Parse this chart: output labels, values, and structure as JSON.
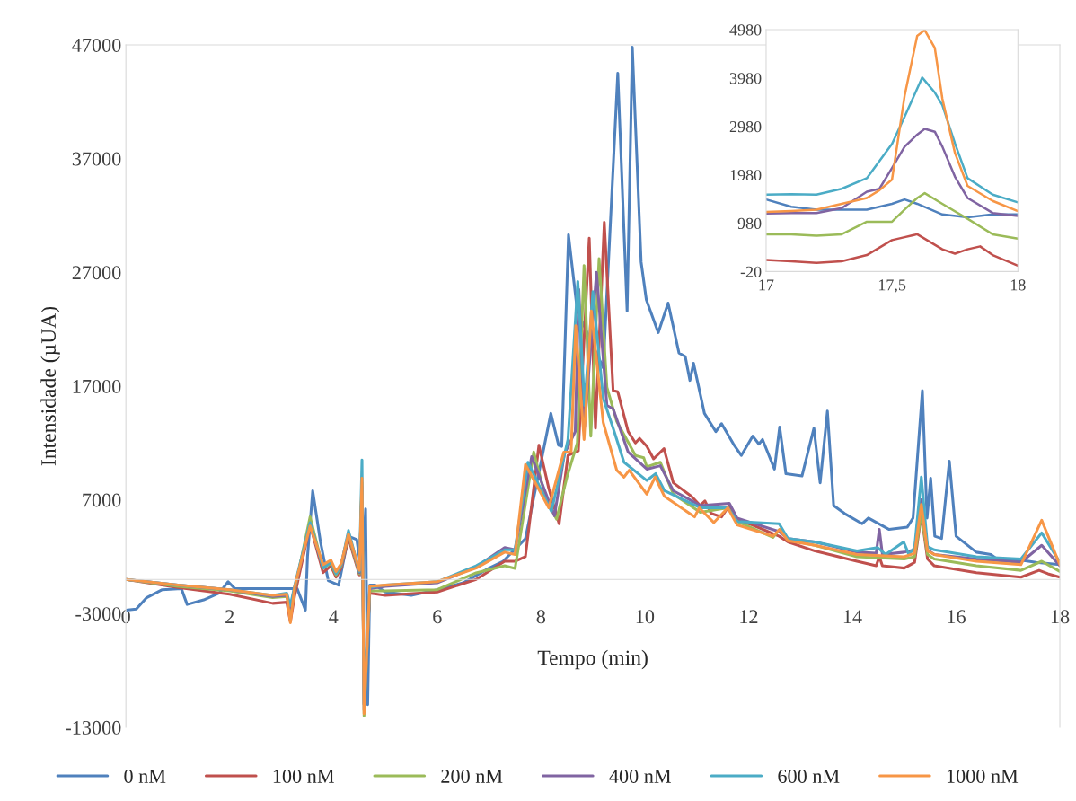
{
  "chart_data": [
    {
      "type": "line",
      "xlabel": "Tempo (min)",
      "ylabel": "Intensidade (µUA)",
      "xlim": [
        0,
        18
      ],
      "xticks": [
        0,
        2,
        4,
        6,
        8,
        10,
        12,
        14,
        16,
        18
      ],
      "ylim": [
        -13000,
        47000
      ],
      "yticks": [
        -13000,
        -3000,
        7000,
        17000,
        27000,
        37000,
        47000
      ],
      "legend": "bottom",
      "series": [
        {
          "name": "0 nM",
          "color": "#4f81bd",
          "x": [
            0,
            0.2,
            0.4,
            0.7,
            1.07,
            1.18,
            1.5,
            1.8,
            1.97,
            2.1,
            3.3,
            3.46,
            3.5,
            3.6,
            3.75,
            3.9,
            4.1,
            4.29,
            4.45,
            4.55,
            4.62,
            4.66,
            4.7,
            4.8,
            5.0,
            5.5,
            6.0,
            6.5,
            7.0,
            7.27,
            7.7,
            8.0,
            8.19,
            8.34,
            8.4,
            8.53,
            8.7,
            9.2,
            9.48,
            9.66,
            9.76,
            9.93,
            10.03,
            10.26,
            10.45,
            10.66,
            10.78,
            10.87,
            10.94,
            11.15,
            11.37,
            11.48,
            11.71,
            11.86,
            12.08,
            12.2,
            12.27,
            12.5,
            12.6,
            12.72,
            13.03,
            13.26,
            13.38,
            13.52,
            13.64,
            13.85,
            14.19,
            14.31,
            14.71,
            15.06,
            15.17,
            15.35,
            15.44,
            15.51,
            15.59,
            15.72,
            15.87,
            16.0,
            16.39,
            16.67,
            16.79,
            17.25,
            17.54,
            18.0
          ],
          "values": [
            -2700,
            -2600,
            -1600,
            -900,
            -800,
            -2200,
            -1800,
            -1200,
            -200,
            -800,
            -800,
            -2700,
            2000,
            7800,
            3300,
            -100,
            -500,
            3800,
            3500,
            300,
            6200,
            -11000,
            -500,
            -500,
            -1100,
            -1400,
            -900,
            -300,
            1000,
            1600,
            3580,
            10300,
            14600,
            11800,
            11700,
            30300,
            23600,
            18600,
            44500,
            23600,
            46800,
            27900,
            24600,
            21700,
            24300,
            19900,
            19600,
            17500,
            19000,
            14600,
            13000,
            13700,
            11900,
            10900,
            12600,
            11900,
            12300,
            9700,
            13400,
            9300,
            9100,
            13300,
            8500,
            14800,
            6500,
            5800,
            4900,
            5400,
            4400,
            4600,
            5400,
            16600,
            5400,
            8900,
            3800,
            3600,
            10400,
            3800,
            2400,
            2200,
            1800,
            1700,
            1500,
            1300
          ]
        },
        {
          "name": "100 nM",
          "color": "#c0504d",
          "x": [
            0,
            1.0,
            2.0,
            2.83,
            3.1,
            3.17,
            3.25,
            3.55,
            3.8,
            3.95,
            4.05,
            4.15,
            4.29,
            4.5,
            4.55,
            4.59,
            4.7,
            5.0,
            6.0,
            6.75,
            7.3,
            7.5,
            7.7,
            7.96,
            8.15,
            8.35,
            8.52,
            8.72,
            8.93,
            9.05,
            9.22,
            9.39,
            9.48,
            9.68,
            9.82,
            9.9,
            10.04,
            10.17,
            10.37,
            10.55,
            10.9,
            11.07,
            11.16,
            11.28,
            11.48,
            11.63,
            11.78,
            12.07,
            12.59,
            12.76,
            13.28,
            14.09,
            14.46,
            14.52,
            14.58,
            15.0,
            15.2,
            15.33,
            15.45,
            15.58,
            16.39,
            17.25,
            17.6,
            17.77,
            18.0
          ],
          "values": [
            0,
            -700,
            -1300,
            -2100,
            -2000,
            -3700,
            -1500,
            4800,
            600,
            1200,
            200,
            1000,
            3600,
            400,
            8000,
            -11000,
            -1200,
            -1400,
            -1100,
            0,
            1600,
            1600,
            2000,
            11800,
            8000,
            4900,
            10900,
            11300,
            30000,
            13300,
            31400,
            16600,
            16500,
            13000,
            12000,
            12400,
            11700,
            10600,
            11500,
            8500,
            7300,
            6500,
            6900,
            5800,
            5500,
            6500,
            5200,
            4800,
            3800,
            3300,
            2500,
            1600,
            1200,
            2000,
            1200,
            1000,
            1500,
            5700,
            1800,
            1200,
            600,
            200,
            800,
            500,
            200
          ]
        },
        {
          "name": "200 nM",
          "color": "#9bbb59",
          "x": [
            0,
            1.0,
            2.0,
            2.83,
            3.1,
            3.17,
            3.25,
            3.55,
            3.8,
            3.95,
            4.05,
            4.15,
            4.29,
            4.5,
            4.55,
            4.59,
            4.7,
            5.0,
            6.0,
            6.75,
            7.3,
            7.5,
            7.86,
            8.1,
            8.3,
            8.5,
            8.7,
            8.83,
            8.96,
            9.12,
            9.27,
            9.46,
            9.82,
            9.98,
            10.04,
            10.3,
            10.55,
            11.07,
            11.6,
            11.78,
            12.47,
            12.6,
            12.76,
            13.28,
            14.09,
            15.0,
            15.2,
            15.33,
            15.45,
            15.58,
            16.39,
            17.25,
            17.65,
            18.0
          ],
          "values": [
            0,
            -600,
            -1000,
            -1600,
            -1500,
            -3000,
            -1000,
            5500,
            1000,
            1400,
            400,
            1200,
            3900,
            500,
            8500,
            -12000,
            -1000,
            -1000,
            -900,
            580,
            1200,
            970,
            11200,
            7000,
            5300,
            9000,
            12000,
            27600,
            12600,
            28200,
            16900,
            13900,
            10900,
            10700,
            9900,
            10300,
            7500,
            5900,
            6300,
            5100,
            3700,
            4400,
            3500,
            3000,
            2000,
            1800,
            2000,
            5800,
            2200,
            1800,
            1200,
            800,
            1600,
            700
          ]
        },
        {
          "name": "400 nM",
          "color": "#8064a2",
          "x": [
            0,
            1.0,
            2.0,
            2.83,
            3.1,
            3.17,
            3.25,
            3.55,
            3.8,
            3.95,
            4.05,
            4.15,
            4.29,
            4.5,
            4.55,
            4.59,
            4.7,
            5.0,
            6.0,
            6.75,
            7.3,
            7.5,
            7.82,
            8.26,
            8.45,
            8.66,
            8.73,
            8.84,
            9.07,
            9.27,
            9.39,
            9.68,
            10.04,
            10.3,
            10.55,
            11.07,
            11.63,
            11.78,
            12.59,
            12.76,
            13.28,
            14.09,
            14.46,
            14.52,
            14.58,
            15.0,
            15.2,
            15.33,
            15.45,
            15.58,
            16.39,
            17.25,
            17.65,
            18.0
          ],
          "values": [
            0,
            -500,
            -900,
            -1500,
            -1400,
            -2500,
            -800,
            4900,
            1100,
            1500,
            600,
            1300,
            4100,
            600,
            8200,
            -11500,
            -800,
            -600,
            -300,
            1100,
            2800,
            2600,
            10800,
            5600,
            11000,
            13000,
            25500,
            13400,
            27000,
            15300,
            15000,
            11200,
            9700,
            10000,
            7800,
            6500,
            6700,
            5400,
            4200,
            3600,
            3300,
            2400,
            2300,
            4400,
            2200,
            2400,
            2600,
            7000,
            2600,
            2200,
            1800,
            1500,
            3000,
            1200
          ]
        },
        {
          "name": "600 nM",
          "color": "#4bacc6",
          "x": [
            0,
            1.0,
            2.0,
            2.83,
            3.1,
            3.17,
            3.25,
            3.55,
            3.8,
            3.95,
            4.05,
            4.15,
            4.29,
            4.5,
            4.55,
            4.59,
            4.7,
            5.0,
            6.0,
            6.75,
            7.3,
            7.5,
            7.75,
            8.2,
            8.52,
            8.71,
            8.84,
            9.0,
            9.2,
            9.39,
            9.6,
            10.04,
            10.21,
            10.38,
            11.07,
            11.6,
            11.78,
            12.59,
            12.76,
            13.28,
            14.09,
            14.49,
            14.64,
            14.99,
            15.09,
            15.2,
            15.33,
            15.45,
            15.58,
            16.39,
            17.25,
            17.65,
            18.0
          ],
          "values": [
            0,
            -500,
            -900,
            -1400,
            -1200,
            -2300,
            -600,
            5000,
            1000,
            1500,
            500,
            1300,
            4300,
            700,
            10500,
            -11000,
            -700,
            -500,
            -200,
            1200,
            2600,
            2600,
            10300,
            6000,
            12300,
            26200,
            15300,
            25300,
            15900,
            13300,
            10300,
            8700,
            9300,
            7800,
            6300,
            6300,
            5100,
            4900,
            3600,
            3300,
            2500,
            2800,
            2200,
            3300,
            2200,
            2800,
            9000,
            2900,
            2600,
            2000,
            1800,
            4100,
            1500
          ]
        },
        {
          "name": "1000 nM",
          "color": "#f79646",
          "x": [
            0,
            1.0,
            2.0,
            2.83,
            3.1,
            3.17,
            3.25,
            3.55,
            3.8,
            3.95,
            4.05,
            4.15,
            4.29,
            4.5,
            4.55,
            4.59,
            4.7,
            5.0,
            6.0,
            6.75,
            7.3,
            7.5,
            7.7,
            8.15,
            8.44,
            8.58,
            8.67,
            8.83,
            8.97,
            9.2,
            9.46,
            9.6,
            9.7,
            10.04,
            10.2,
            10.38,
            10.96,
            11.05,
            11.33,
            11.6,
            11.78,
            12.47,
            12.6,
            12.76,
            13.28,
            14.09,
            15.0,
            15.2,
            15.33,
            15.45,
            15.58,
            16.39,
            17.25,
            17.65,
            18.0
          ],
          "values": [
            0,
            -500,
            -900,
            -1400,
            -1300,
            -3800,
            -700,
            4700,
            1300,
            1700,
            700,
            1400,
            4000,
            800,
            8900,
            -11800,
            -600,
            -500,
            -200,
            1000,
            2400,
            2200,
            10100,
            6300,
            11200,
            11200,
            22300,
            12300,
            23600,
            13800,
            9600,
            9000,
            9600,
            7500,
            9000,
            7300,
            5500,
            6300,
            5000,
            6300,
            4800,
            3800,
            4400,
            3400,
            3000,
            2200,
            2000,
            2300,
            6600,
            2500,
            2200,
            1600,
            1300,
            5200,
            1300
          ]
        }
      ]
    },
    {
      "type": "line",
      "xlim": [
        17,
        18
      ],
      "xticks": [
        17,
        {
          "value": 17.5,
          "label": "17,5"
        },
        18
      ],
      "ylim": [
        -20,
        4980
      ],
      "yticks": [
        -20,
        980,
        1980,
        2980,
        3980,
        4980
      ],
      "series": [
        {
          "color": "#4f81bd",
          "x": [
            17.0,
            17.1,
            17.2,
            17.3,
            17.4,
            17.5,
            17.55,
            17.6,
            17.7,
            17.8,
            17.9,
            18.0
          ],
          "values": [
            1470,
            1320,
            1260,
            1260,
            1260,
            1380,
            1470,
            1380,
            1160,
            1100,
            1160,
            1160
          ]
        },
        {
          "color": "#c0504d",
          "x": [
            17.0,
            17.1,
            17.2,
            17.3,
            17.4,
            17.5,
            17.55,
            17.6,
            17.7,
            17.75,
            17.8,
            17.85,
            17.9,
            18.0
          ],
          "values": [
            220,
            190,
            160,
            190,
            320,
            630,
            690,
            750,
            440,
            350,
            440,
            500,
            320,
            100
          ]
        },
        {
          "color": "#9bbb59",
          "x": [
            17.0,
            17.1,
            17.2,
            17.3,
            17.4,
            17.5,
            17.55,
            17.6,
            17.63,
            17.7,
            17.8,
            17.9,
            18.0
          ],
          "values": [
            750,
            750,
            720,
            750,
            1010,
            1010,
            1260,
            1500,
            1600,
            1380,
            1070,
            750,
            660
          ]
        },
        {
          "color": "#8064a2",
          "x": [
            17.0,
            17.1,
            17.2,
            17.3,
            17.4,
            17.45,
            17.5,
            17.55,
            17.6,
            17.63,
            17.67,
            17.7,
            17.75,
            17.8,
            17.9,
            18.0
          ],
          "values": [
            1180,
            1190,
            1190,
            1290,
            1630,
            1690,
            2120,
            2560,
            2810,
            2930,
            2870,
            2560,
            1940,
            1500,
            1190,
            1130
          ]
        },
        {
          "color": "#4bacc6",
          "x": [
            17.0,
            17.1,
            17.2,
            17.3,
            17.4,
            17.5,
            17.55,
            17.62,
            17.67,
            17.7,
            17.75,
            17.8,
            17.9,
            18.0
          ],
          "values": [
            1570,
            1580,
            1570,
            1690,
            1910,
            2620,
            3180,
            3990,
            3680,
            3420,
            2630,
            1910,
            1570,
            1410
          ]
        },
        {
          "color": "#f79646",
          "x": [
            17.0,
            17.1,
            17.2,
            17.3,
            17.4,
            17.45,
            17.5,
            17.55,
            17.6,
            17.63,
            17.67,
            17.7,
            17.75,
            17.8,
            17.9,
            18.0
          ],
          "values": [
            1210,
            1230,
            1260,
            1380,
            1500,
            1660,
            1880,
            3610,
            4850,
            4970,
            4600,
            3550,
            2430,
            1750,
            1440,
            1230
          ]
        }
      ]
    }
  ]
}
